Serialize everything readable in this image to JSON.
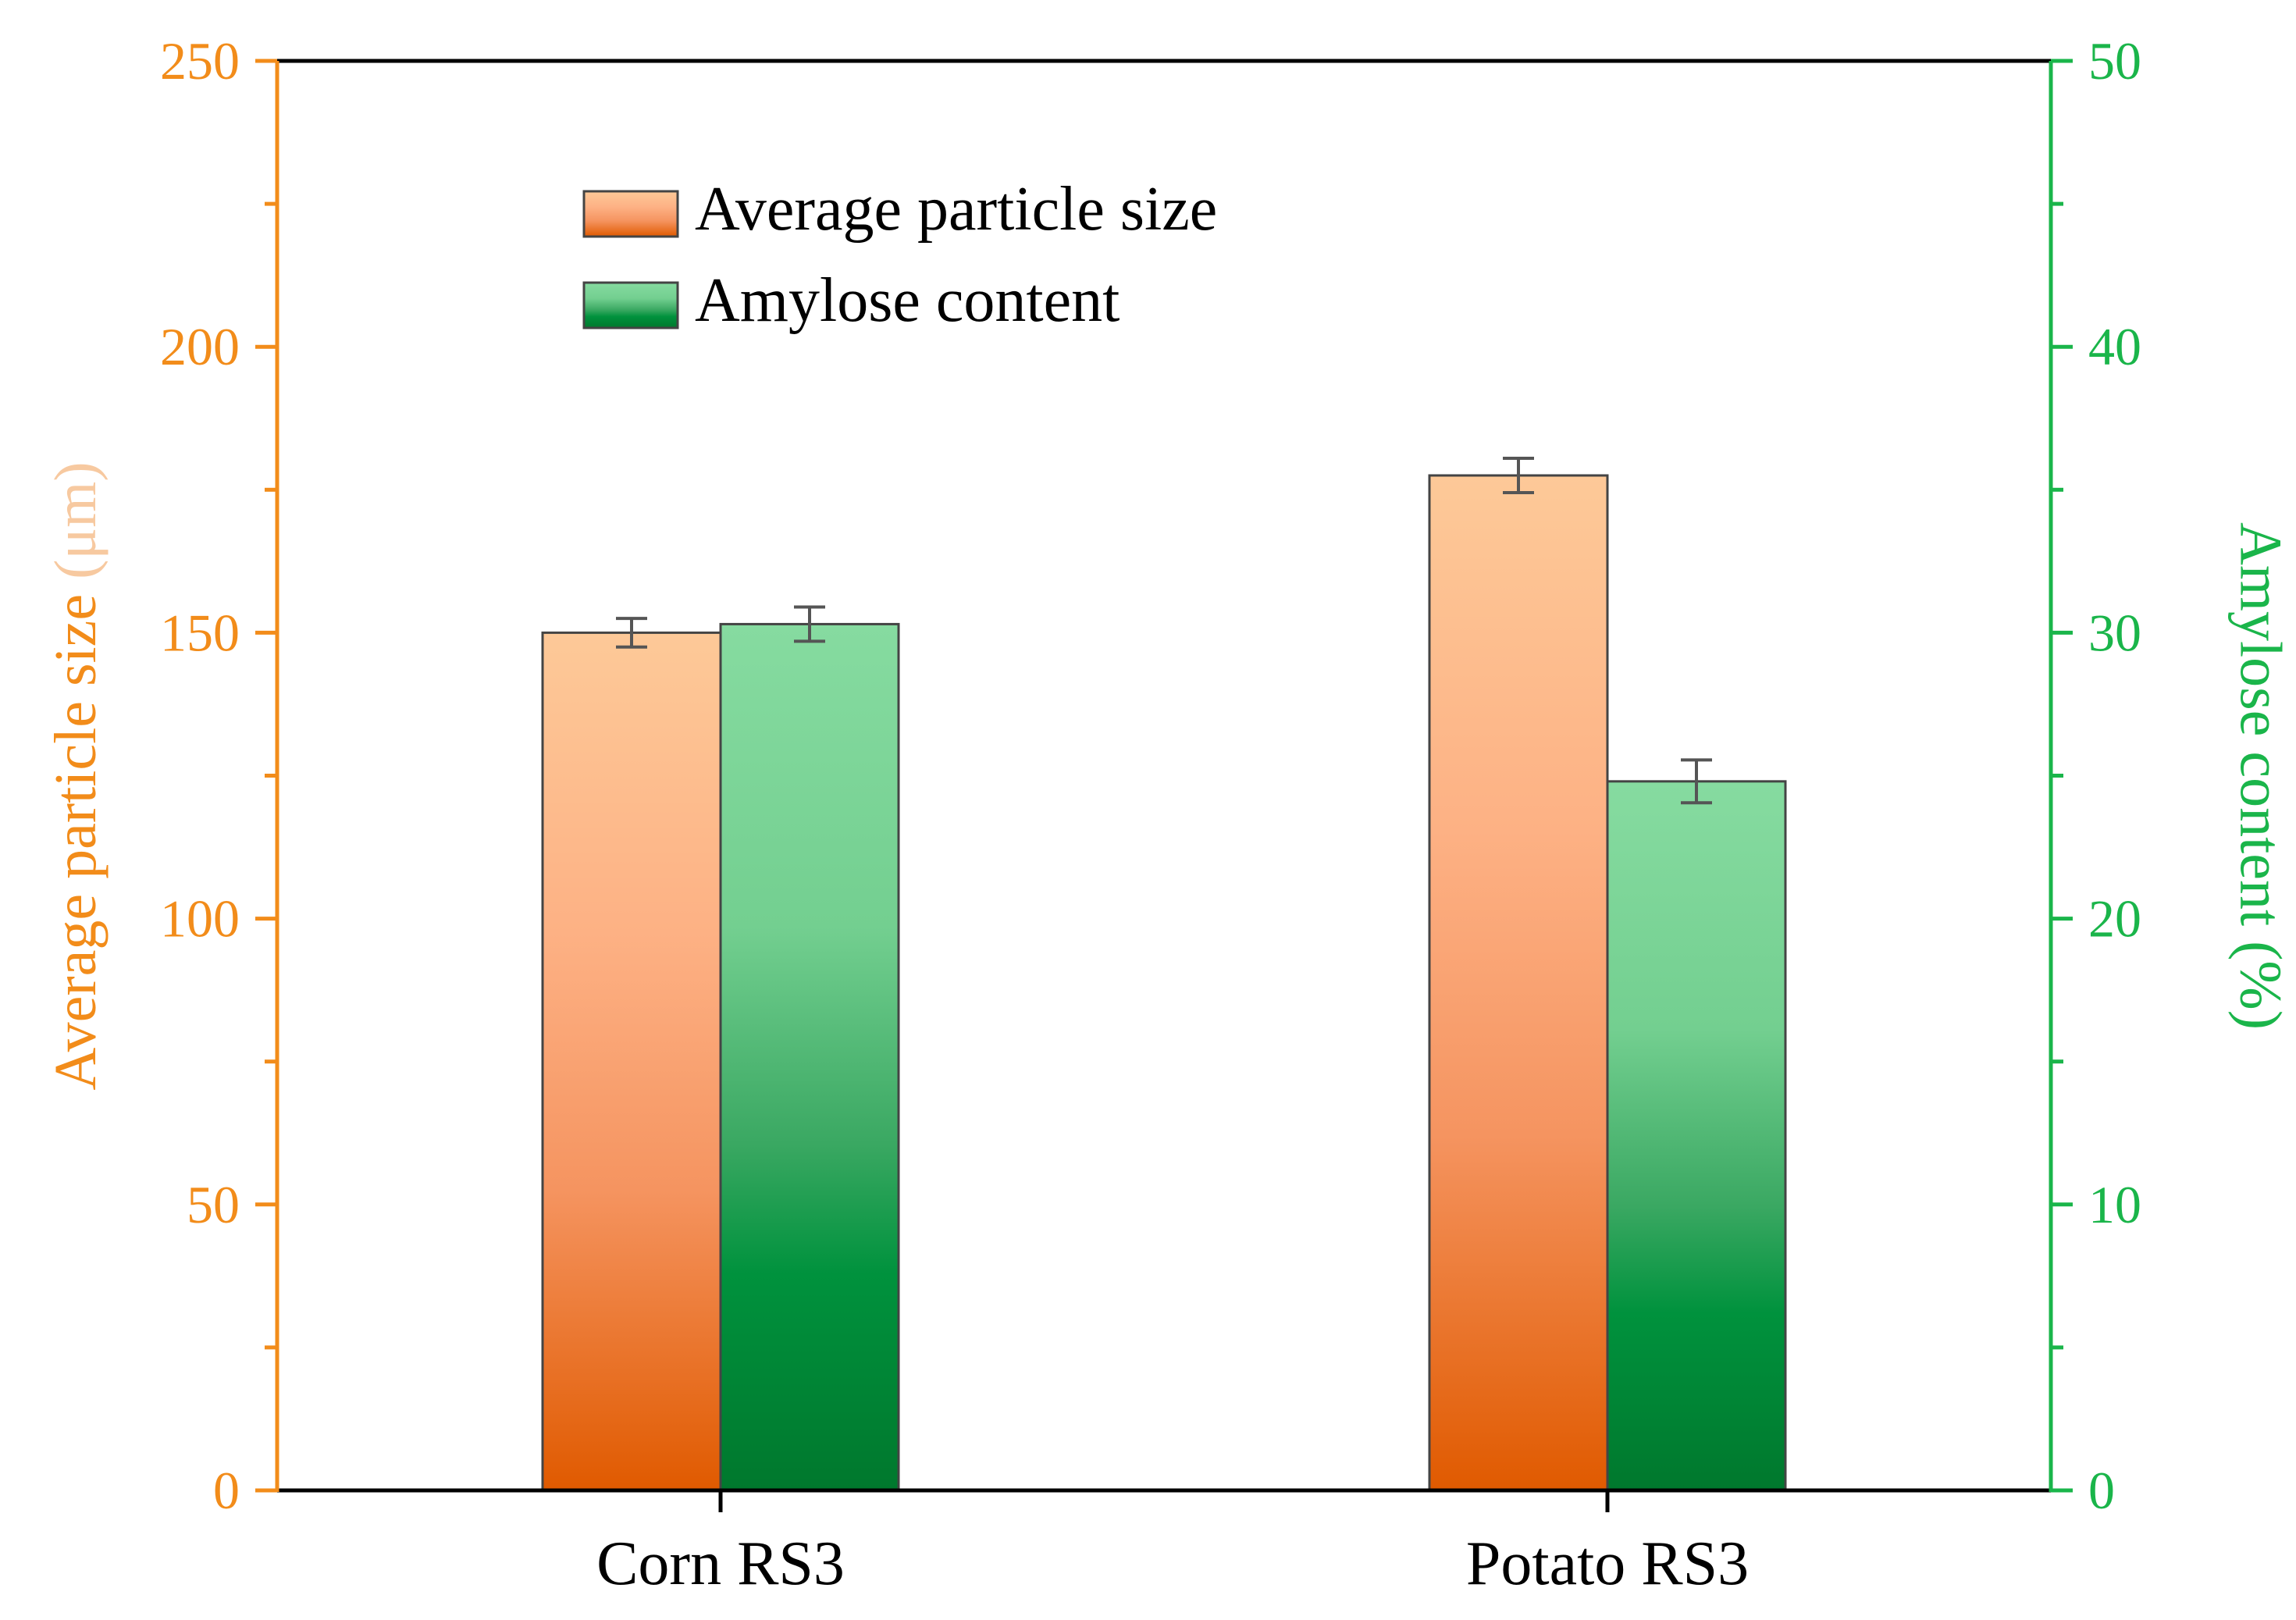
{
  "chart_data": {
    "type": "bar",
    "categories": [
      "Corn RS3",
      "Potato RS3"
    ],
    "series": [
      {
        "name": "Average particle size",
        "axis": "left",
        "values": [
          150,
          177.5
        ],
        "errors": [
          2.5,
          3
        ]
      },
      {
        "name": "Amylose content",
        "axis": "right",
        "values": [
          30.3,
          24.8
        ],
        "errors": [
          0.6,
          0.75
        ]
      }
    ],
    "left_axis": {
      "label_prefix": "Average particle size ",
      "label_unit": "(μm)",
      "ylim": [
        0,
        250
      ],
      "ticks": [
        "0",
        "50",
        "100",
        "150",
        "200",
        "250"
      ]
    },
    "right_axis": {
      "label": "Amylose content (%)",
      "ylim": [
        0,
        50
      ],
      "ticks": [
        "0",
        "10",
        "20",
        "30",
        "40",
        "50"
      ]
    },
    "legend": [
      "Average particle size",
      "Amylose content"
    ],
    "legend_position": "top-left",
    "colors": {
      "left_axis": "#f28c1a",
      "left_axis_unit": "#f7c9a0",
      "right_axis": "#1ab54a",
      "orange_top": "#fdc998",
      "orange_bottom": "#e05a00",
      "green_top": "#86dba0",
      "green_bottom": "#00782d"
    }
  }
}
